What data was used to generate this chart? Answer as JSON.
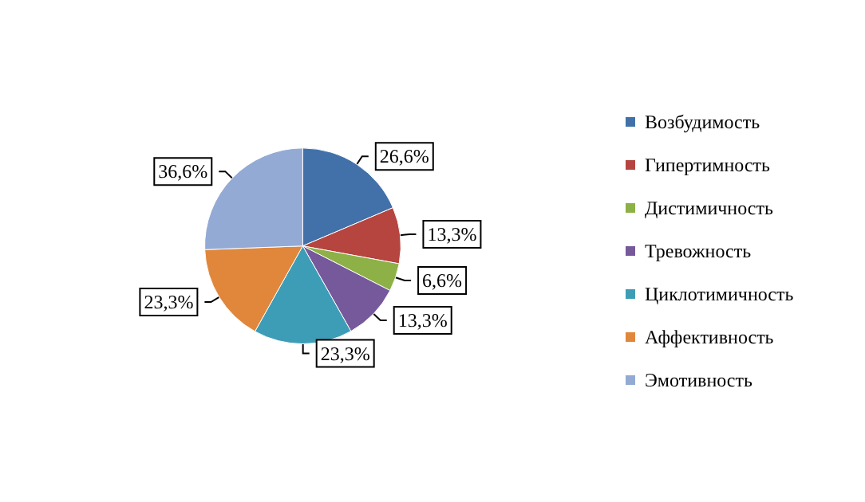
{
  "chart_data": {
    "type": "pie",
    "categories": [
      "Возбудимость",
      "Гипертимность",
      "Дистимичность",
      "Тревожность",
      "Циклотимичность",
      "Аффективность",
      "Эмотивность"
    ],
    "values": [
      26.6,
      13.3,
      6.6,
      13.3,
      23.3,
      23.3,
      36.6
    ],
    "value_labels": [
      "26,6%",
      "13,3%",
      "6,6%",
      "13,3%",
      "23,3%",
      "23,3%",
      "36,6%"
    ],
    "colors": [
      "#4271a9",
      "#b6443f",
      "#8db146",
      "#76599b",
      "#3e9db6",
      "#e0873c",
      "#93aad4"
    ],
    "legend": "right"
  }
}
